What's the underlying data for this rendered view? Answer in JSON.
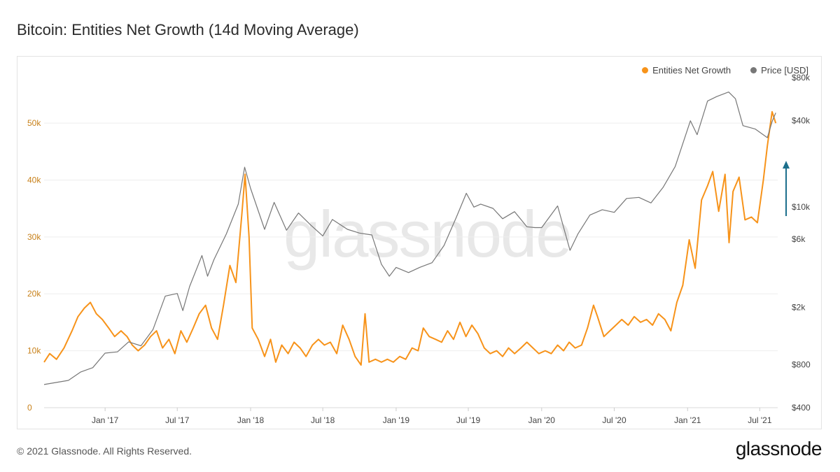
{
  "header": {
    "title": "Bitcoin: Entities Net Growth (14d Moving Average)"
  },
  "footer": {
    "copyright": "© 2021 Glassnode. All Rights Reserved.",
    "brand": "glassnode"
  },
  "watermark": "glassnode",
  "colors": {
    "entities": "#f7931a",
    "price": "#777777",
    "arrow": "#1c6f8c",
    "grid": "#eeeeee",
    "left_axis_text": "#c8811a"
  },
  "chart_data": {
    "type": "line",
    "title": "Bitcoin: Entities Net Growth (14d Moving Average)",
    "x_range": [
      "2016-08-01",
      "2021-08-15"
    ],
    "x_ticks": [
      "Jan '17",
      "Jul '17",
      "Jan '18",
      "Jul '18",
      "Jan '19",
      "Jul '19",
      "Jan '20",
      "Jul '20",
      "Jan '21",
      "Jul '21"
    ],
    "x_tick_dates": [
      "2017-01-01",
      "2017-07-01",
      "2018-01-01",
      "2018-07-01",
      "2019-01-01",
      "2019-07-01",
      "2020-01-01",
      "2020-07-01",
      "2021-01-01",
      "2021-07-01"
    ],
    "y_left": {
      "ticks": [
        "0",
        "10k",
        "20k",
        "30k",
        "40k",
        "50k"
      ],
      "tick_values": [
        0,
        10000,
        20000,
        30000,
        40000,
        50000
      ],
      "range": [
        0,
        58000
      ]
    },
    "y_right": {
      "scale": "log",
      "ticks": [
        "$400",
        "$800",
        "$2k",
        "$6k",
        "$10k",
        "$40k",
        "$80k"
      ],
      "tick_values": [
        400,
        800,
        2000,
        6000,
        10000,
        40000,
        80000
      ],
      "range": [
        400,
        80000
      ]
    },
    "legend": [
      "Entities Net Growth",
      "Price [USD]"
    ],
    "legend_position": "top-right",
    "grid": true,
    "series": [
      {
        "name": "Entities Net Growth",
        "color": "#f7931a",
        "axis": "left",
        "points": [
          [
            "2016-08-01",
            8000
          ],
          [
            "2016-08-15",
            9500
          ],
          [
            "2016-09-01",
            8500
          ],
          [
            "2016-09-20",
            10500
          ],
          [
            "2016-10-10",
            13500
          ],
          [
            "2016-10-25",
            16000
          ],
          [
            "2016-11-10",
            17500
          ],
          [
            "2016-11-25",
            18500
          ],
          [
            "2016-12-10",
            16500
          ],
          [
            "2016-12-25",
            15500
          ],
          [
            "2017-01-10",
            14000
          ],
          [
            "2017-01-25",
            12500
          ],
          [
            "2017-02-10",
            13500
          ],
          [
            "2017-02-25",
            12500
          ],
          [
            "2017-03-10",
            11000
          ],
          [
            "2017-03-25",
            10000
          ],
          [
            "2017-04-10",
            11000
          ],
          [
            "2017-04-25",
            12500
          ],
          [
            "2017-05-10",
            13500
          ],
          [
            "2017-05-25",
            10500
          ],
          [
            "2017-06-10",
            12000
          ],
          [
            "2017-06-25",
            9500
          ],
          [
            "2017-07-10",
            13500
          ],
          [
            "2017-07-25",
            11500
          ],
          [
            "2017-08-10",
            14000
          ],
          [
            "2017-08-25",
            16500
          ],
          [
            "2017-09-10",
            18000
          ],
          [
            "2017-09-25",
            14000
          ],
          [
            "2017-10-10",
            12000
          ],
          [
            "2017-10-25",
            18000
          ],
          [
            "2017-11-10",
            25000
          ],
          [
            "2017-11-25",
            22000
          ],
          [
            "2017-12-10",
            34000
          ],
          [
            "2017-12-18",
            41000
          ],
          [
            "2017-12-28",
            30000
          ],
          [
            "2018-01-05",
            14000
          ],
          [
            "2018-01-20",
            12000
          ],
          [
            "2018-02-05",
            9000
          ],
          [
            "2018-02-20",
            12000
          ],
          [
            "2018-03-05",
            8000
          ],
          [
            "2018-03-20",
            11000
          ],
          [
            "2018-04-05",
            9500
          ],
          [
            "2018-04-20",
            11500
          ],
          [
            "2018-05-05",
            10500
          ],
          [
            "2018-05-20",
            9000
          ],
          [
            "2018-06-05",
            11000
          ],
          [
            "2018-06-20",
            12000
          ],
          [
            "2018-07-05",
            11000
          ],
          [
            "2018-07-20",
            11500
          ],
          [
            "2018-08-05",
            9500
          ],
          [
            "2018-08-20",
            14500
          ],
          [
            "2018-09-05",
            12000
          ],
          [
            "2018-09-20",
            9000
          ],
          [
            "2018-10-05",
            7500
          ],
          [
            "2018-10-15",
            16500
          ],
          [
            "2018-10-25",
            8000
          ],
          [
            "2018-11-10",
            8500
          ],
          [
            "2018-11-25",
            8000
          ],
          [
            "2018-12-10",
            8500
          ],
          [
            "2018-12-25",
            8000
          ],
          [
            "2019-01-10",
            9000
          ],
          [
            "2019-01-25",
            8500
          ],
          [
            "2019-02-10",
            10500
          ],
          [
            "2019-02-25",
            10000
          ],
          [
            "2019-03-10",
            14000
          ],
          [
            "2019-03-25",
            12500
          ],
          [
            "2019-04-10",
            12000
          ],
          [
            "2019-04-25",
            11500
          ],
          [
            "2019-05-10",
            13500
          ],
          [
            "2019-05-25",
            12000
          ],
          [
            "2019-06-10",
            15000
          ],
          [
            "2019-06-25",
            12500
          ],
          [
            "2019-07-10",
            14500
          ],
          [
            "2019-07-25",
            13000
          ],
          [
            "2019-08-10",
            10500
          ],
          [
            "2019-08-25",
            9500
          ],
          [
            "2019-09-10",
            10000
          ],
          [
            "2019-09-25",
            9000
          ],
          [
            "2019-10-10",
            10500
          ],
          [
            "2019-10-25",
            9500
          ],
          [
            "2019-11-10",
            10500
          ],
          [
            "2019-11-25",
            11500
          ],
          [
            "2019-12-10",
            10500
          ],
          [
            "2019-12-25",
            9500
          ],
          [
            "2020-01-10",
            10000
          ],
          [
            "2020-01-25",
            9500
          ],
          [
            "2020-02-10",
            11000
          ],
          [
            "2020-02-25",
            10000
          ],
          [
            "2020-03-10",
            11500
          ],
          [
            "2020-03-25",
            10500
          ],
          [
            "2020-04-10",
            11000
          ],
          [
            "2020-04-25",
            14000
          ],
          [
            "2020-05-10",
            18000
          ],
          [
            "2020-05-20",
            16000
          ],
          [
            "2020-06-05",
            12500
          ],
          [
            "2020-06-20",
            13500
          ],
          [
            "2020-07-05",
            14500
          ],
          [
            "2020-07-20",
            15500
          ],
          [
            "2020-08-05",
            14500
          ],
          [
            "2020-08-20",
            16000
          ],
          [
            "2020-09-05",
            15000
          ],
          [
            "2020-09-20",
            15500
          ],
          [
            "2020-10-05",
            14500
          ],
          [
            "2020-10-20",
            16500
          ],
          [
            "2020-11-05",
            15500
          ],
          [
            "2020-11-20",
            13500
          ],
          [
            "2020-12-05",
            18500
          ],
          [
            "2020-12-20",
            21500
          ],
          [
            "2021-01-05",
            29500
          ],
          [
            "2021-01-20",
            24500
          ],
          [
            "2021-02-05",
            36500
          ],
          [
            "2021-02-20",
            39000
          ],
          [
            "2021-03-05",
            41500
          ],
          [
            "2021-03-20",
            34500
          ],
          [
            "2021-04-05",
            41000
          ],
          [
            "2021-04-15",
            29000
          ],
          [
            "2021-04-25",
            38000
          ],
          [
            "2021-05-10",
            40500
          ],
          [
            "2021-05-25",
            33000
          ],
          [
            "2021-06-10",
            33500
          ],
          [
            "2021-06-25",
            32500
          ],
          [
            "2021-07-10",
            40000
          ],
          [
            "2021-07-20",
            46000
          ],
          [
            "2021-08-01",
            52000
          ],
          [
            "2021-08-10",
            50000
          ]
        ]
      },
      {
        "name": "Price [USD]",
        "color": "#777777",
        "axis": "right",
        "points": [
          [
            "2016-08-01",
            580
          ],
          [
            "2016-09-01",
            600
          ],
          [
            "2016-10-01",
            620
          ],
          [
            "2016-11-01",
            710
          ],
          [
            "2016-12-01",
            760
          ],
          [
            "2017-01-01",
            960
          ],
          [
            "2017-02-01",
            980
          ],
          [
            "2017-03-01",
            1150
          ],
          [
            "2017-04-01",
            1080
          ],
          [
            "2017-05-01",
            1400
          ],
          [
            "2017-06-01",
            2400
          ],
          [
            "2017-07-01",
            2500
          ],
          [
            "2017-07-15",
            1900
          ],
          [
            "2017-08-01",
            2800
          ],
          [
            "2017-09-01",
            4600
          ],
          [
            "2017-09-15",
            3300
          ],
          [
            "2017-10-01",
            4300
          ],
          [
            "2017-11-01",
            6500
          ],
          [
            "2017-12-01",
            10500
          ],
          [
            "2017-12-17",
            19000
          ],
          [
            "2018-01-01",
            13500
          ],
          [
            "2018-02-05",
            7000
          ],
          [
            "2018-03-01",
            10800
          ],
          [
            "2018-04-01",
            6900
          ],
          [
            "2018-05-01",
            9100
          ],
          [
            "2018-06-01",
            7500
          ],
          [
            "2018-07-01",
            6300
          ],
          [
            "2018-07-25",
            8200
          ],
          [
            "2018-09-01",
            7000
          ],
          [
            "2018-10-01",
            6600
          ],
          [
            "2018-11-01",
            6400
          ],
          [
            "2018-11-25",
            4000
          ],
          [
            "2018-12-15",
            3300
          ],
          [
            "2019-01-01",
            3800
          ],
          [
            "2019-02-01",
            3500
          ],
          [
            "2019-03-01",
            3800
          ],
          [
            "2019-04-01",
            4100
          ],
          [
            "2019-05-01",
            5400
          ],
          [
            "2019-06-01",
            8500
          ],
          [
            "2019-06-26",
            12500
          ],
          [
            "2019-07-15",
            10000
          ],
          [
            "2019-08-01",
            10500
          ],
          [
            "2019-09-01",
            9800
          ],
          [
            "2019-09-25",
            8300
          ],
          [
            "2019-10-25",
            9300
          ],
          [
            "2019-11-25",
            7300
          ],
          [
            "2019-12-15",
            7200
          ],
          [
            "2020-01-01",
            7200
          ],
          [
            "2020-02-10",
            10200
          ],
          [
            "2020-03-12",
            5000
          ],
          [
            "2020-04-01",
            6500
          ],
          [
            "2020-05-01",
            8800
          ],
          [
            "2020-06-01",
            9600
          ],
          [
            "2020-07-01",
            9200
          ],
          [
            "2020-08-01",
            11500
          ],
          [
            "2020-09-01",
            11700
          ],
          [
            "2020-10-01",
            10700
          ],
          [
            "2020-11-01",
            13800
          ],
          [
            "2020-12-01",
            19200
          ],
          [
            "2021-01-08",
            40000
          ],
          [
            "2021-01-25",
            32000
          ],
          [
            "2021-02-20",
            55000
          ],
          [
            "2021-03-15",
            59000
          ],
          [
            "2021-04-14",
            63500
          ],
          [
            "2021-05-01",
            57000
          ],
          [
            "2021-05-20",
            37000
          ],
          [
            "2021-06-20",
            35000
          ],
          [
            "2021-07-20",
            30500
          ],
          [
            "2021-08-01",
            39500
          ],
          [
            "2021-08-10",
            45500
          ]
        ]
      }
    ]
  }
}
